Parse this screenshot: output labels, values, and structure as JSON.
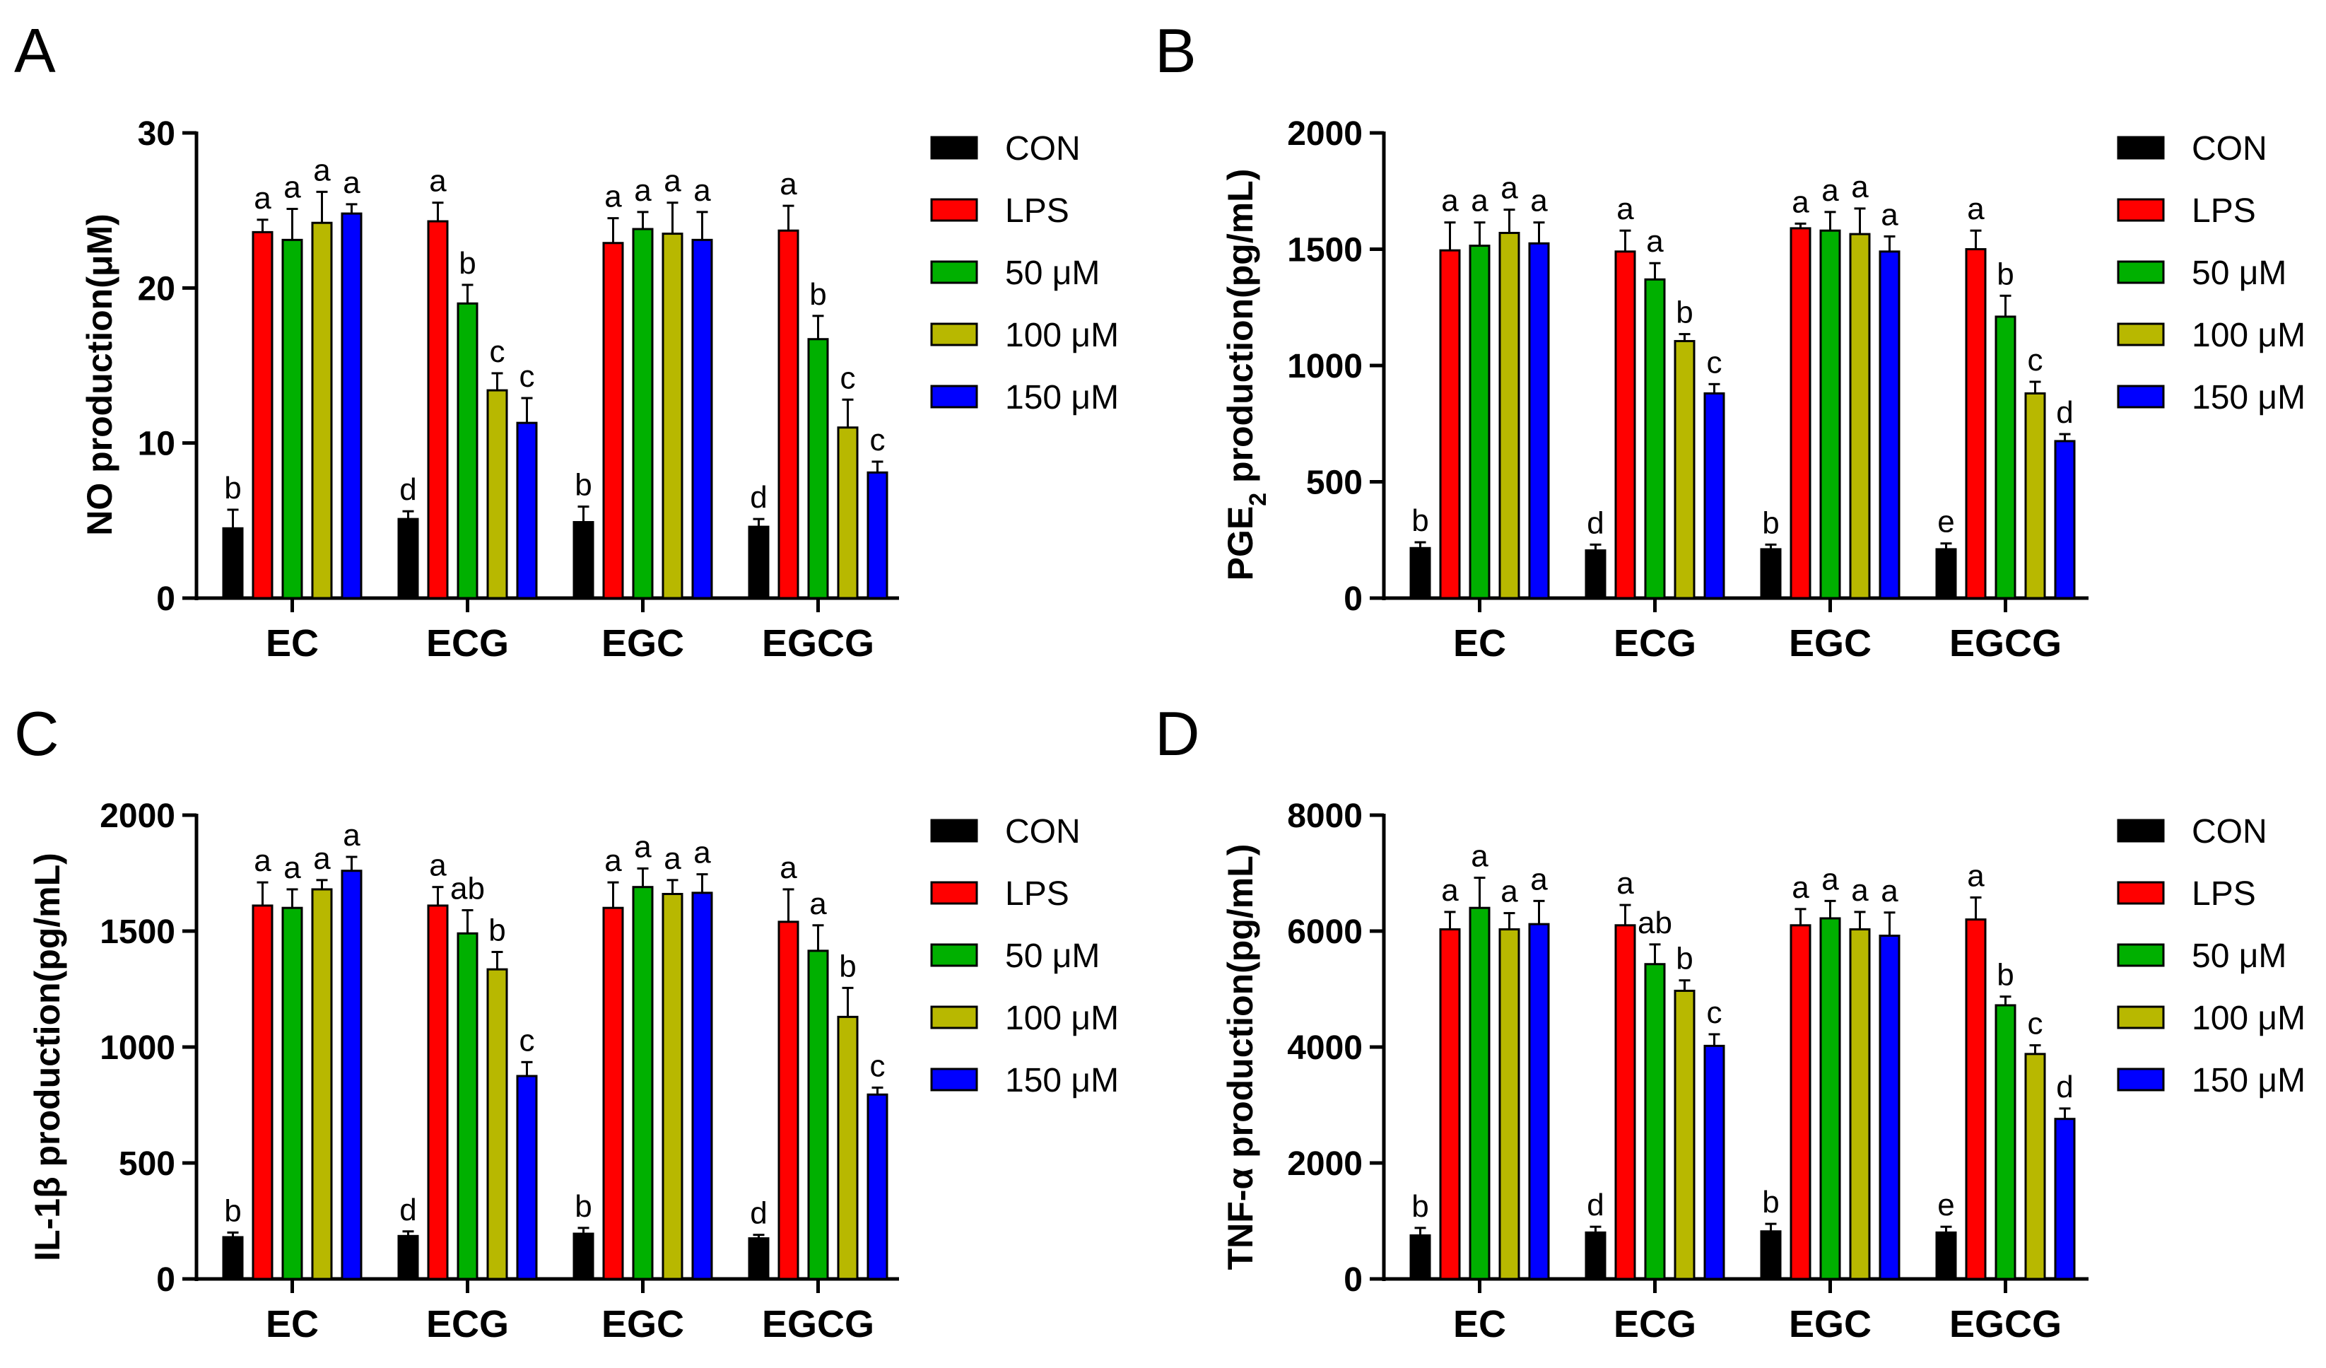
{
  "legend": [
    {
      "label": "CON",
      "color": "#000000"
    },
    {
      "label": "LPS",
      "color": "#ff0000"
    },
    {
      "label": "50 μM",
      "color": "#00b000"
    },
    {
      "label": "100 μM",
      "color": "#b8b800"
    },
    {
      "label": "150 μM",
      "color": "#0000ff"
    }
  ],
  "chart_data": [
    {
      "panel": "A",
      "type": "bar",
      "ylabel": "NO production(μM)",
      "ylim": [
        0,
        30
      ],
      "yticks": [
        0,
        10,
        20,
        30
      ],
      "categories": [
        "EC",
        "ECG",
        "EGC",
        "EGCG"
      ],
      "series": [
        {
          "name": "CON",
          "values": [
            4.5,
            5.1,
            4.9,
            4.6
          ],
          "errors": [
            1.2,
            0.5,
            1.0,
            0.5
          ],
          "labels": [
            "b",
            "d",
            "b",
            "d"
          ]
        },
        {
          "name": "LPS",
          "values": [
            23.6,
            24.3,
            22.9,
            23.7
          ],
          "errors": [
            0.8,
            1.2,
            1.6,
            1.6
          ],
          "labels": [
            "a",
            "a",
            "a",
            "a"
          ]
        },
        {
          "name": "50 μM",
          "values": [
            23.1,
            19.0,
            23.8,
            16.7
          ],
          "errors": [
            2.0,
            1.2,
            1.1,
            1.5
          ],
          "labels": [
            "a",
            "b",
            "a",
            "b"
          ]
        },
        {
          "name": "100 μM",
          "values": [
            24.2,
            13.4,
            23.5,
            11.0
          ],
          "errors": [
            2.0,
            1.1,
            2.0,
            1.8
          ],
          "labels": [
            "a",
            "c",
            "a",
            "c"
          ]
        },
        {
          "name": "150 μM",
          "values": [
            24.8,
            11.3,
            23.1,
            8.1
          ],
          "errors": [
            0.6,
            1.6,
            1.8,
            0.7
          ],
          "labels": [
            "a",
            "c",
            "a",
            "c"
          ]
        }
      ]
    },
    {
      "panel": "B",
      "type": "bar",
      "ylabel_main": "PGE",
      "ylabel_sub": "2",
      "ylabel_rest": " production(pg/mL)",
      "ylim": [
        0,
        2000
      ],
      "yticks": [
        0,
        500,
        1000,
        1500,
        2000
      ],
      "categories": [
        "EC",
        "ECG",
        "EGC",
        "EGCG"
      ],
      "series": [
        {
          "name": "CON",
          "values": [
            215,
            205,
            210,
            210
          ],
          "errors": [
            25,
            25,
            20,
            25
          ],
          "labels": [
            "b",
            "d",
            "b",
            "e"
          ]
        },
        {
          "name": "LPS",
          "values": [
            1495,
            1490,
            1590,
            1500
          ],
          "errors": [
            120,
            90,
            20,
            80
          ],
          "labels": [
            "a",
            "a",
            "a",
            "a"
          ]
        },
        {
          "name": "50 μM",
          "values": [
            1515,
            1370,
            1580,
            1210
          ],
          "errors": [
            100,
            70,
            80,
            90
          ],
          "labels": [
            "a",
            "a",
            "a",
            "b"
          ]
        },
        {
          "name": "100 μM",
          "values": [
            1570,
            1105,
            1565,
            880
          ],
          "errors": [
            100,
            30,
            110,
            50
          ],
          "labels": [
            "a",
            "b",
            "a",
            "c"
          ]
        },
        {
          "name": "150 μM",
          "values": [
            1525,
            880,
            1490,
            675
          ],
          "errors": [
            90,
            40,
            65,
            30
          ],
          "labels": [
            "a",
            "c",
            "a",
            "d"
          ]
        }
      ]
    },
    {
      "panel": "C",
      "type": "bar",
      "ylabel": "IL-1β production(pg/mL)",
      "ylim": [
        0,
        2000
      ],
      "yticks": [
        0,
        500,
        1000,
        1500,
        2000
      ],
      "categories": [
        "EC",
        "ECG",
        "EGC",
        "EGCG"
      ],
      "series": [
        {
          "name": "CON",
          "values": [
            180,
            185,
            195,
            175
          ],
          "errors": [
            20,
            20,
            25,
            15
          ],
          "labels": [
            "b",
            "d",
            "b",
            "d"
          ]
        },
        {
          "name": "LPS",
          "values": [
            1610,
            1610,
            1600,
            1540
          ],
          "errors": [
            100,
            80,
            110,
            140
          ],
          "labels": [
            "a",
            "a",
            "a",
            "a"
          ]
        },
        {
          "name": "50 μM",
          "values": [
            1600,
            1490,
            1690,
            1415
          ],
          "errors": [
            80,
            100,
            80,
            110
          ],
          "labels": [
            "a",
            "ab",
            "a",
            "a"
          ]
        },
        {
          "name": "100 μM",
          "values": [
            1680,
            1335,
            1660,
            1130
          ],
          "errors": [
            40,
            75,
            60,
            125
          ],
          "labels": [
            "a",
            "b",
            "a",
            "b"
          ]
        },
        {
          "name": "150 μM",
          "values": [
            1760,
            875,
            1665,
            795
          ],
          "errors": [
            60,
            60,
            80,
            30
          ],
          "labels": [
            "a",
            "c",
            "a",
            "c"
          ]
        }
      ]
    },
    {
      "panel": "D",
      "type": "bar",
      "ylabel": "TNF-α production(pg/mL)",
      "ylim": [
        0,
        8000
      ],
      "yticks": [
        0,
        2000,
        4000,
        6000,
        8000
      ],
      "categories": [
        "EC",
        "ECG",
        "EGC",
        "EGCG"
      ],
      "series": [
        {
          "name": "CON",
          "values": [
            750,
            800,
            820,
            800
          ],
          "errors": [
            130,
            100,
            130,
            100
          ],
          "labels": [
            "b",
            "d",
            "b",
            "e"
          ]
        },
        {
          "name": "LPS",
          "values": [
            6030,
            6100,
            6100,
            6200
          ],
          "errors": [
            300,
            350,
            280,
            380
          ],
          "labels": [
            "a",
            "a",
            "a",
            "a"
          ]
        },
        {
          "name": "50 μM",
          "values": [
            6400,
            5430,
            6220,
            4720
          ],
          "errors": [
            520,
            340,
            300,
            150
          ],
          "labels": [
            "a",
            "ab",
            "a",
            "b"
          ]
        },
        {
          "name": "100 μM",
          "values": [
            6030,
            4970,
            6030,
            3880
          ],
          "errors": [
            280,
            180,
            300,
            150
          ],
          "labels": [
            "a",
            "b",
            "a",
            "c"
          ]
        },
        {
          "name": "150 μM",
          "values": [
            6120,
            4020,
            5920,
            2760
          ],
          "errors": [
            400,
            200,
            400,
            180
          ],
          "labels": [
            "a",
            "c",
            "a",
            "d"
          ]
        }
      ]
    }
  ]
}
